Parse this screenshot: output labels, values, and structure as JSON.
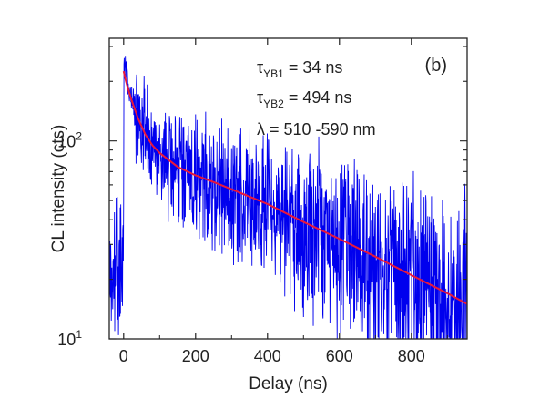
{
  "chart_data": {
    "type": "line",
    "panel_label": "(b)",
    "xlabel": "Delay (ns)",
    "ylabel": "CL intensity (cts)",
    "xlim": [
      -40,
      955
    ],
    "ylim": [
      10,
      330
    ],
    "y_scale": "log",
    "x_ticks": [
      0,
      200,
      400,
      600,
      800
    ],
    "y_ticks": [
      {
        "value": 10,
        "base": "10",
        "exp": "1"
      },
      {
        "value": 100,
        "base": "10",
        "exp": "2"
      }
    ],
    "annotations": [
      {
        "prefix": "τ",
        "sub": "YB1",
        "text": " = 34 ns"
      },
      {
        "prefix": "τ",
        "sub": "YB2",
        "text": " = 494 ns"
      },
      {
        "prefix": "",
        "sub": "",
        "text": "λ = 510 -590 nm"
      }
    ],
    "grid": false,
    "legend": "none",
    "series": [
      {
        "kind": "measured",
        "color": "#0000ee",
        "noise": "high",
        "x": [
          -40,
          -30,
          -20,
          -10,
          -5,
          -2,
          0,
          2,
          5,
          10,
          20,
          40,
          60,
          80,
          100,
          150,
          200,
          300,
          400,
          500,
          600,
          700,
          800,
          900,
          955
        ],
        "y": [
          10,
          10,
          10,
          10,
          10,
          12,
          260,
          270,
          230,
          200,
          170,
          130,
          108,
          95,
          88,
          74,
          67,
          55,
          45,
          37,
          30,
          25,
          20,
          16,
          14.5
        ]
      },
      {
        "kind": "fit",
        "color": "#e8173c",
        "x": [
          0,
          5,
          10,
          20,
          40,
          60,
          80,
          100,
          150,
          200,
          250,
          300,
          400,
          500,
          600,
          700,
          800,
          900,
          955
        ],
        "y": [
          225,
          205,
          190,
          165,
          130,
          108,
          95,
          87,
          74,
          67,
          62,
          57,
          48,
          39,
          32,
          26,
          21,
          17,
          15
        ]
      }
    ]
  }
}
